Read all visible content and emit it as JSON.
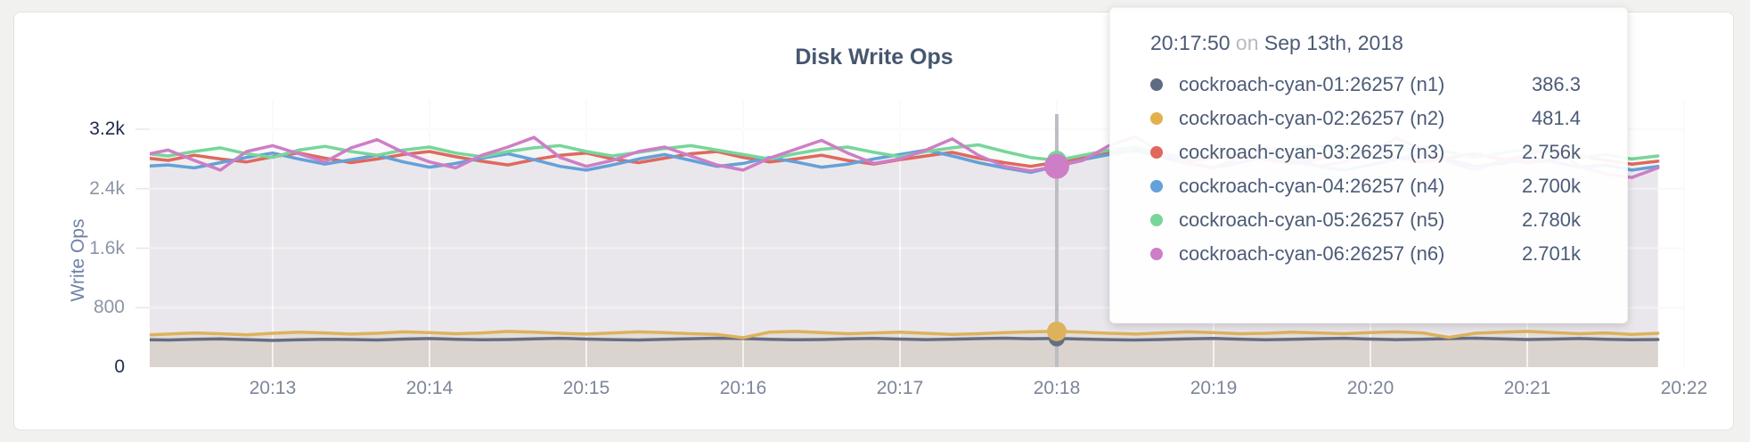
{
  "chart": {
    "title": "Disk Write Ops",
    "y_axis_label": "Write Ops"
  },
  "tooltip": {
    "time": "20:17:50",
    "on_word": "on",
    "date": "Sep 13th, 2018",
    "rows": [
      {
        "label": "cockroach-cyan-01:26257 (n1)",
        "value": "386.3",
        "color": "#5f6b84"
      },
      {
        "label": "cockroach-cyan-02:26257 (n2)",
        "value": "481.4",
        "color": "#e3b04b"
      },
      {
        "label": "cockroach-cyan-03:26257 (n3)",
        "value": "2.756k",
        "color": "#e0685e"
      },
      {
        "label": "cockroach-cyan-04:26257 (n4)",
        "value": "2.700k",
        "color": "#64a1d8"
      },
      {
        "label": "cockroach-cyan-05:26257 (n5)",
        "value": "2.780k",
        "color": "#77d69a"
      },
      {
        "label": "cockroach-cyan-06:26257 (n6)",
        "value": "2.701k",
        "color": "#cd7ec6"
      }
    ]
  },
  "chart_data": {
    "type": "line",
    "title": "Disk Write Ops",
    "ylabel": "Write Ops",
    "ylim": [
      0,
      3200
    ],
    "grid": true,
    "x_start_time": "20:12:10",
    "x_step_seconds": 10,
    "x_tick_labels": [
      "20:13",
      "20:14",
      "20:15",
      "20:16",
      "20:17",
      "20:18",
      "20:19",
      "20:20",
      "20:21",
      "20:22"
    ],
    "y_ticks": [
      {
        "label": "0",
        "value": 0
      },
      {
        "label": "800",
        "value": 800
      },
      {
        "label": "1.6k",
        "value": 1600
      },
      {
        "label": "2.4k",
        "value": 2400
      },
      {
        "label": "3.2k",
        "value": 3200
      }
    ],
    "hover": {
      "time": "20:17:50",
      "index": 35
    },
    "series": [
      {
        "name": "cockroach-cyan-01:26257 (n1)",
        "color": "#646e84",
        "fill_alpha": 0.1,
        "dot_radius": 9,
        "values": [
          370,
          365,
          375,
          380,
          370,
          360,
          368,
          375,
          372,
          365,
          378,
          385,
          375,
          368,
          372,
          380,
          388,
          378,
          370,
          365,
          375,
          382,
          390,
          385,
          375,
          368,
          372,
          380,
          386,
          378,
          370,
          376,
          384,
          390,
          382,
          386.3,
          378,
          370,
          365,
          372,
          380,
          386,
          376,
          368,
          374,
          382,
          388,
          378,
          370,
          376,
          384,
          390,
          380,
          372,
          378,
          385,
          375,
          368,
          372
        ]
      },
      {
        "name": "cockroach-cyan-02:26257 (n2)",
        "color": "#ddb25d",
        "fill_alpha": 0.16,
        "dot_radius": 11,
        "values": [
          430,
          445,
          460,
          450,
          435,
          455,
          470,
          460,
          445,
          455,
          475,
          465,
          450,
          460,
          480,
          470,
          455,
          445,
          460,
          475,
          465,
          450,
          440,
          395,
          470,
          480,
          465,
          450,
          460,
          470,
          455,
          440,
          450,
          465,
          475,
          481.4,
          470,
          455,
          445,
          460,
          475,
          465,
          450,
          455,
          470,
          460,
          450,
          465,
          475,
          460,
          400,
          455,
          470,
          480,
          465,
          450,
          460,
          440,
          455
        ]
      },
      {
        "name": "cockroach-cyan-03:26257 (n3)",
        "color": "#e0685e",
        "fill_alpha": 0.06,
        "dot_radius": 11,
        "values": [
          2820,
          2780,
          2850,
          2800,
          2760,
          2830,
          2880,
          2810,
          2750,
          2800,
          2860,
          2900,
          2830,
          2770,
          2720,
          2790,
          2850,
          2880,
          2800,
          2750,
          2810,
          2870,
          2900,
          2820,
          2760,
          2800,
          2850,
          2780,
          2730,
          2790,
          2840,
          2890,
          2810,
          2750,
          2700,
          2756,
          2820,
          2880,
          2910,
          2840,
          2770,
          2810,
          2860,
          2790,
          2740,
          2800,
          2850,
          2900,
          2820,
          2760,
          2810,
          2870,
          2800,
          2750,
          2790,
          2840,
          2780,
          2730,
          2770
        ]
      },
      {
        "name": "cockroach-cyan-04:26257 (n4)",
        "color": "#64a1d8",
        "fill_alpha": 0.06,
        "dot_radius": 11,
        "values": [
          2700,
          2720,
          2680,
          2750,
          2820,
          2880,
          2800,
          2730,
          2790,
          2850,
          2760,
          2690,
          2740,
          2810,
          2870,
          2790,
          2700,
          2650,
          2720,
          2800,
          2860,
          2780,
          2700,
          2740,
          2820,
          2760,
          2690,
          2730,
          2800,
          2860,
          2920,
          2840,
          2750,
          2680,
          2620,
          2700,
          2790,
          2860,
          2920,
          2830,
          2740,
          2680,
          2750,
          2830,
          2780,
          2700,
          2650,
          2720,
          2800,
          2870,
          2790,
          2700,
          2740,
          2810,
          2760,
          2690,
          2720,
          2650,
          2700
        ]
      },
      {
        "name": "cockroach-cyan-05:26257 (n5)",
        "color": "#77d69a",
        "fill_alpha": 0.06,
        "dot_radius": 11,
        "values": [
          2880,
          2840,
          2900,
          2950,
          2870,
          2820,
          2920,
          2970,
          2900,
          2850,
          2920,
          2960,
          2880,
          2830,
          2900,
          2950,
          2980,
          2900,
          2840,
          2890,
          2940,
          2980,
          2920,
          2860,
          2800,
          2870,
          2930,
          2960,
          2890,
          2830,
          2900,
          2950,
          2990,
          2900,
          2820,
          2780,
          2850,
          2920,
          2960,
          2880,
          2810,
          2870,
          2930,
          2890,
          2940,
          2980,
          2900,
          2850,
          2910,
          2960,
          2890,
          2820,
          2880,
          2930,
          2870,
          2810,
          2860,
          2800,
          2840
        ]
      },
      {
        "name": "cockroach-cyan-06:26257 (n6)",
        "color": "#cd7ec6",
        "fill_alpha": 0.06,
        "dot_radius": 14,
        "values": [
          2850,
          2920,
          2780,
          2650,
          2900,
          2980,
          2870,
          2760,
          2950,
          3060,
          2890,
          2760,
          2680,
          2850,
          2960,
          3090,
          2820,
          2700,
          2780,
          2900,
          2960,
          2840,
          2720,
          2650,
          2810,
          2930,
          3050,
          2880,
          2740,
          2800,
          2920,
          3070,
          2850,
          2700,
          2640,
          2701,
          2780,
          2980,
          3100,
          2890,
          2750,
          2680,
          2820,
          2950,
          2860,
          2700,
          2760,
          2900,
          3080,
          2920,
          2760,
          2650,
          2780,
          2850,
          2950,
          2700,
          2600,
          2550,
          2680
        ]
      }
    ]
  }
}
